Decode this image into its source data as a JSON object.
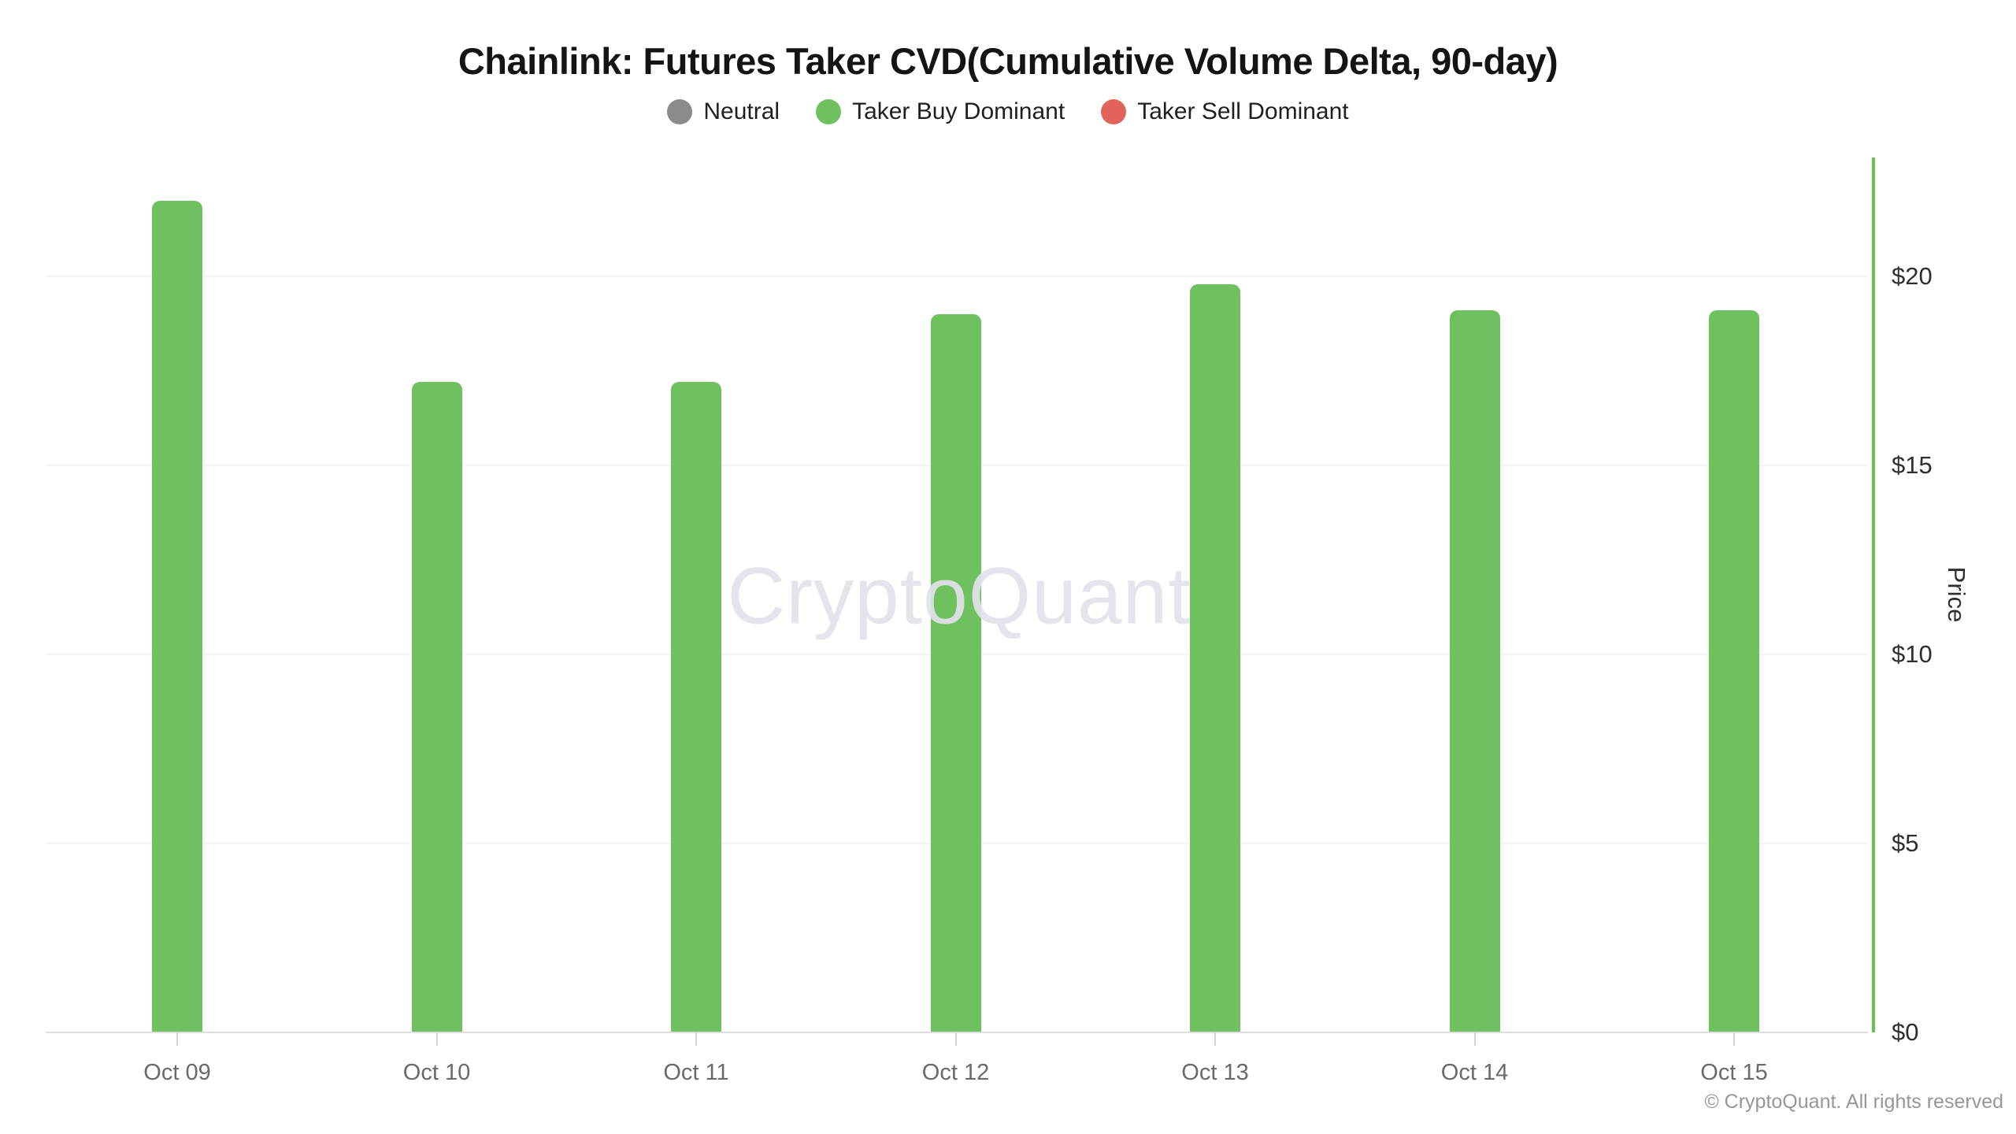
{
  "title": "Chainlink: Futures Taker CVD(Cumulative Volume Delta, 90-day)",
  "legend": {
    "items": [
      {
        "id": "neutral",
        "label": "Neutral",
        "color": "#8a8a8f"
      },
      {
        "id": "taker-buy-dominant",
        "label": "Taker Buy Dominant",
        "color": "#6fc05e"
      },
      {
        "id": "taker-sell-dominant",
        "label": "Taker Sell Dominant",
        "color": "#e2625c"
      }
    ]
  },
  "watermark": "CryptoQuant",
  "footer": {
    "copyright": "© CryptoQuant. All rights reserved"
  },
  "chart_data": {
    "type": "bar",
    "title": "Chainlink: Futures Taker CVD(Cumulative Volume Delta, 90-day)",
    "categories": [
      "Oct 09",
      "Oct 10",
      "Oct 11",
      "Oct 12",
      "Oct 13",
      "Oct 14",
      "Oct 15"
    ],
    "series": [
      {
        "name": "Price",
        "values": [
          22.0,
          17.2,
          17.2,
          19.0,
          19.8,
          19.1,
          19.1
        ],
        "statuses": [
          "taker_buy_dominant",
          "taker_buy_dominant",
          "taker_buy_dominant",
          "taker_buy_dominant",
          "taker_buy_dominant",
          "taker_buy_dominant",
          "taker_buy_dominant"
        ]
      }
    ],
    "xlabel": "",
    "ylabel": "Price",
    "y_axis_side": "right",
    "y_ticks": [
      {
        "label": "$0",
        "value": 0
      },
      {
        "label": "$5",
        "value": 5
      },
      {
        "label": "$10",
        "value": 10
      },
      {
        "label": "$15",
        "value": 15
      },
      {
        "label": "$20",
        "value": 20
      }
    ],
    "ylim": [
      0,
      23.2
    ],
    "grid": "horizontal-faint",
    "legend_position": "top-center",
    "colors": {
      "bar": "#6fc05e",
      "axis_line": "#6cbf55",
      "gridline": "#f4f4f5",
      "baseline": "#dededf"
    }
  }
}
